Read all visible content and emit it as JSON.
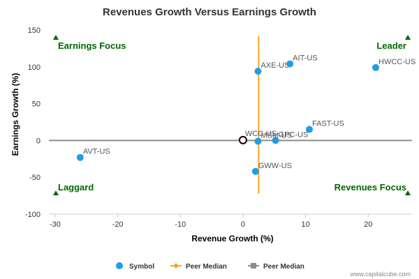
{
  "chart_data": {
    "type": "scatter",
    "title": "Revenues Growth Versus Earnings Growth",
    "xlabel": "Revenue Growth (%)",
    "ylabel": "Earnings Growth (%)",
    "xlim": [
      -31,
      27
    ],
    "ylim": [
      -100,
      150
    ],
    "xticks": [
      -30,
      -20,
      -10,
      0,
      10,
      20
    ],
    "yticks": [
      -100,
      -50,
      0,
      50,
      100,
      150
    ],
    "points": [
      {
        "label": "AXE-US",
        "x": 2.4,
        "y": 94
      },
      {
        "label": "AIT-US",
        "x": 7.5,
        "y": 104
      },
      {
        "label": "HWCC-US",
        "x": 21.2,
        "y": 99
      },
      {
        "label": "FAST-US",
        "x": 10.6,
        "y": 15
      },
      {
        "label": "MSM-US",
        "x": 2.4,
        "y": -1
      },
      {
        "label": "GPC-US",
        "x": 5.2,
        "y": 0
      },
      {
        "label": "GWW-US",
        "x": 2.0,
        "y": -42
      },
      {
        "label": "AVT-US",
        "x": -26.0,
        "y": -23
      }
    ],
    "highlight": {
      "label": "WCC-US",
      "x": 0.0,
      "y": 0.5
    },
    "peer_median_x": 2.5,
    "peer_median_y": 0,
    "quadrants": {
      "top_left": "Earnings Focus",
      "top_right": "Leader",
      "bottom_left": "Laggard",
      "bottom_right": "Revenues Focus"
    },
    "legend": [
      {
        "label": "Symbol",
        "color": "#1f9ee8"
      },
      {
        "label": "Peer Median",
        "color": "#f5a623"
      },
      {
        "label": "Peer Median",
        "color": "#8c8c8c"
      }
    ],
    "credit": "www.capitalcube.com",
    "colors": {
      "point": "#1f9ee8",
      "vline": "#f5a623",
      "hline": "#8c8c8c",
      "quadrant_text": "#006600"
    }
  }
}
